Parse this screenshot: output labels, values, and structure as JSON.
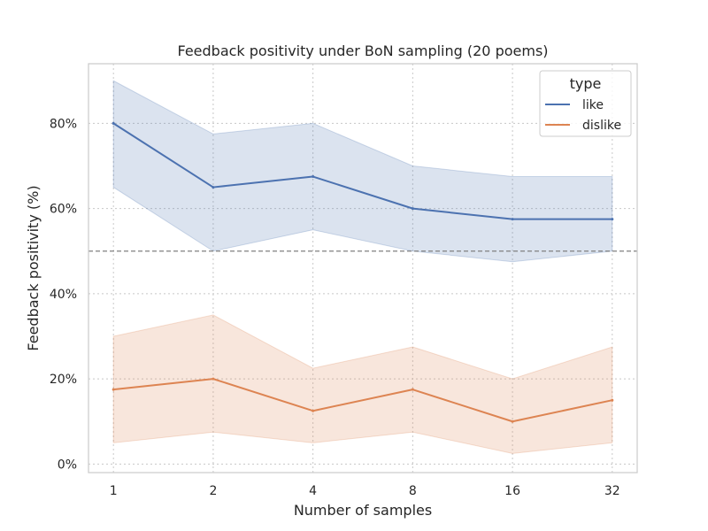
{
  "chart_data": {
    "type": "line",
    "title": "Feedback positivity under BoN sampling (20 poems)",
    "xlabel": "Number of samples",
    "ylabel": "Feedback positivity (%)",
    "x": [
      1,
      2,
      4,
      8,
      16,
      32
    ],
    "x_tick_labels": [
      "1",
      "2",
      "4",
      "8",
      "16",
      "32"
    ],
    "x_scale": "log2",
    "y_ticks": [
      0,
      20,
      40,
      60,
      80
    ],
    "y_tick_labels": [
      "0%",
      "20%",
      "40%",
      "60%",
      "80%"
    ],
    "ylim": [
      -2,
      94
    ],
    "grid": true,
    "reference_line": {
      "y": 50,
      "style": "dashed",
      "color": "#808080"
    },
    "legend": {
      "title": "type",
      "position": "top-right"
    },
    "series": [
      {
        "name": "like",
        "color": "#4c72b0",
        "values": [
          80,
          65,
          67.5,
          60,
          57.5,
          57.5
        ],
        "ci_lower": [
          65,
          50,
          55,
          50,
          47.5,
          50
        ],
        "ci_upper": [
          90,
          77.5,
          80,
          70,
          67.5,
          67.5
        ]
      },
      {
        "name": "dislike",
        "color": "#dd8452",
        "values": [
          17.5,
          20,
          12.5,
          17.5,
          10,
          15
        ],
        "ci_lower": [
          5,
          7.5,
          5,
          7.5,
          2.5,
          5
        ],
        "ci_upper": [
          30,
          35,
          22.5,
          27.5,
          20,
          27.5
        ]
      }
    ]
  }
}
